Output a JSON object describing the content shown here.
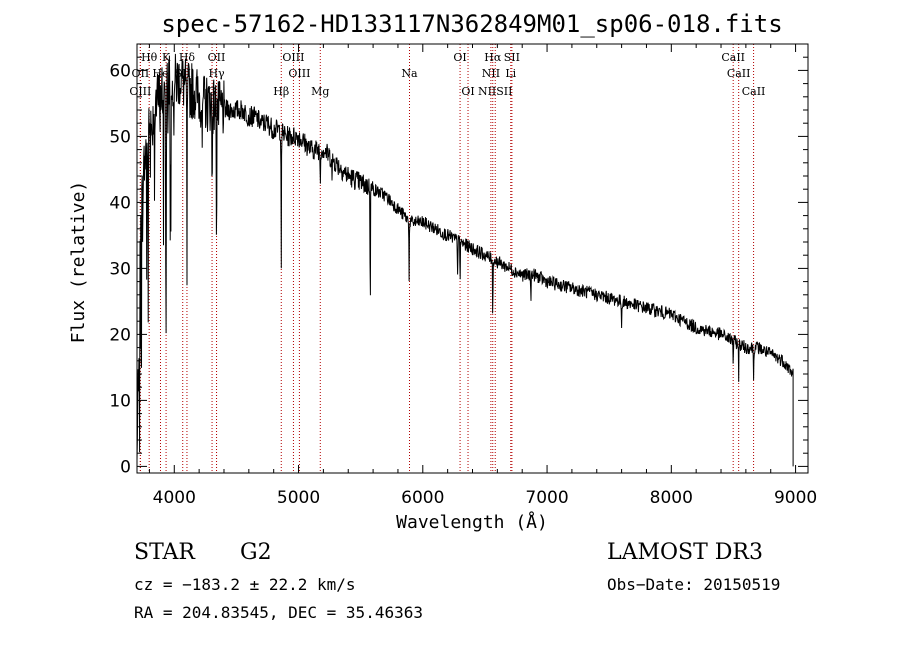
{
  "chart_data": {
    "type": "line",
    "title": "spec-57162-HD133117N362849M01_sp06-018.fits",
    "xlabel": "Wavelength (Å)",
    "ylabel": "Flux (relative)",
    "xlim": [
      3700,
      9100
    ],
    "ylim": [
      -1,
      64
    ],
    "xticks": [
      4000,
      5000,
      6000,
      7000,
      8000,
      9000
    ],
    "yticks": [
      0,
      10,
      20,
      30,
      40,
      50,
      60
    ],
    "series": [
      {
        "name": "spectrum",
        "x": [
          3700,
          3730,
          3760,
          3790,
          3820,
          3850,
          3880,
          3910,
          3940,
          3970,
          4000,
          4050,
          4100,
          4150,
          4200,
          4250,
          4300,
          4350,
          4400,
          4450,
          4500,
          4550,
          4600,
          4650,
          4700,
          4750,
          4800,
          4850,
          4900,
          4950,
          5000,
          5050,
          5100,
          5150,
          5200,
          5300,
          5400,
          5500,
          5600,
          5700,
          5800,
          5900,
          6000,
          6100,
          6200,
          6300,
          6400,
          6500,
          6600,
          6700,
          6800,
          6900,
          7000,
          7200,
          7400,
          7600,
          7800,
          8000,
          8200,
          8400,
          8500,
          8600,
          8700,
          8800,
          8900,
          8980
        ],
        "y": [
          0,
          38,
          46,
          50,
          52,
          55,
          56,
          57,
          58,
          60,
          58,
          59,
          57,
          57,
          56,
          55,
          55,
          54,
          54,
          54,
          54,
          54,
          53,
          53,
          52,
          52,
          51,
          51,
          50,
          50,
          50,
          49,
          48,
          48,
          48,
          46,
          44,
          43,
          42,
          41,
          39,
          37,
          37,
          36,
          35,
          34,
          33,
          32,
          31,
          30,
          29,
          29,
          28,
          27,
          26,
          25,
          24,
          23,
          21,
          20,
          19,
          18,
          18,
          17,
          16,
          14
        ]
      }
    ],
    "spectral_lines": [
      {
        "label": "Hθ",
        "wave": 3798,
        "row": 1
      },
      {
        "label": "K",
        "wave": 3934,
        "row": 1
      },
      {
        "label": "Hδ",
        "wave": 4102,
        "row": 1
      },
      {
        "label": "OII",
        "wave": 4340,
        "row": 1
      },
      {
        "label": "OIII",
        "wave": 4959,
        "row": 1
      },
      {
        "label": "Na",
        "wave": 5893,
        "row": 2
      },
      {
        "label": "OI",
        "wave": 6300,
        "row": 1
      },
      {
        "label": "Hα",
        "wave": 6563,
        "row": 1
      },
      {
        "label": "SII",
        "wave": 6717,
        "row": 1
      },
      {
        "label": "CaII",
        "wave": 8498,
        "row": 1
      },
      {
        "label": "OII",
        "wave": 3727,
        "row": 2
      },
      {
        "label": "He",
        "wave": 3889,
        "row": 2
      },
      {
        "label": "SII",
        "wave": 4068,
        "row": 2
      },
      {
        "label": "Hγ",
        "wave": 4340,
        "row": 2
      },
      {
        "label": "OIII",
        "wave": 5007,
        "row": 2
      },
      {
        "label": "NII",
        "wave": 6548,
        "row": 2
      },
      {
        "label": "Li",
        "wave": 6708,
        "row": 2
      },
      {
        "label": "CaII",
        "wave": 8542,
        "row": 2
      },
      {
        "label": "OIII",
        "wave": 3727,
        "row": 3
      },
      {
        "label": "G",
        "wave": 4304,
        "row": 3
      },
      {
        "label": "Hβ",
        "wave": 4861,
        "row": 3
      },
      {
        "label": "Mg",
        "wave": 5175,
        "row": 3
      },
      {
        "label": "OI",
        "wave": 6364,
        "row": 3
      },
      {
        "label": "NIISII",
        "wave": 6583,
        "row": 3
      },
      {
        "label": "CaII",
        "wave": 8662,
        "row": 3
      }
    ]
  },
  "info": {
    "class": "STAR",
    "subclass": "G2",
    "survey": "LAMOST DR3",
    "cz": "cz = −183.2 ± 22.2 km/s",
    "obs_date": "Obs−Date: 20150519",
    "coords": "RA = 204.83545, DEC =  35.46363"
  }
}
